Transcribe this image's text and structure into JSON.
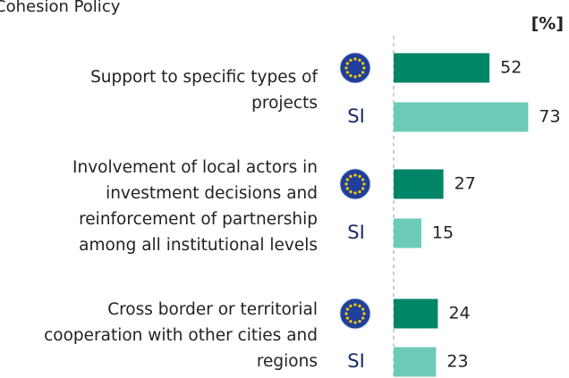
{
  "chart_data": {
    "type": "bar",
    "orientation": "horizontal",
    "title": "Cohesion Policy",
    "unit_label": "[%]",
    "categories": [
      [
        "Support to specific types of",
        "projects"
      ],
      [
        "Involvement of local actors in",
        "investment decisions and",
        "reinforcement of partnership",
        "among all institutional levels"
      ],
      [
        "Cross border or territorial",
        "cooperation with other cities and",
        "regions"
      ]
    ],
    "series": [
      {
        "color": "#008566",
        "values": [
          52,
          27,
          24
        ]
      },
      {
        "name": "SI",
        "color": "#6dcab6",
        "values": [
          73,
          15,
          23
        ]
      }
    ],
    "xlim": [
      0,
      100
    ]
  }
}
